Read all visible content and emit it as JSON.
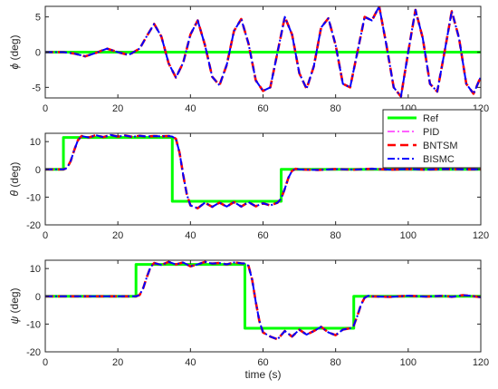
{
  "chart_data": [
    {
      "type": "line",
      "ylabel_symbol": "ϕ",
      "ylabel_unit": " (deg)",
      "xlim": [
        0,
        120
      ],
      "ylim": [
        -6.5,
        6.5
      ],
      "xticks": [
        0,
        20,
        40,
        60,
        80,
        100,
        120
      ],
      "yticks": [
        -5,
        0,
        5
      ],
      "xlabel": "",
      "series": [
        {
          "name": "Ref",
          "x": [
            0,
            120
          ],
          "y": [
            0,
            0
          ]
        },
        {
          "name": "PID",
          "x": [
            0,
            5,
            8,
            11,
            14,
            17,
            20,
            23,
            26,
            28,
            30,
            32,
            34,
            36,
            38,
            40,
            42,
            44,
            46,
            48,
            50,
            52,
            54,
            56,
            58,
            60,
            62,
            64,
            66,
            68,
            70,
            72,
            74,
            76,
            78,
            80,
            82,
            84,
            86,
            88,
            90,
            92,
            94,
            96,
            98,
            100,
            102,
            104,
            106,
            108,
            110,
            112,
            114,
            116,
            118,
            120
          ],
          "y": [
            0,
            0,
            -0.2,
            -0.6,
            -0.1,
            0.5,
            0,
            -0.4,
            0.5,
            2.3,
            4.0,
            2.2,
            -1.6,
            -3.6,
            -1.5,
            2.5,
            4.5,
            1.0,
            -3.5,
            -4.7,
            -1.8,
            3.0,
            4.7,
            1.2,
            -4.0,
            -5.5,
            -5.0,
            0.0,
            5.0,
            2.5,
            -3.0,
            -5.2,
            -2.0,
            3.5,
            4.8,
            1.0,
            -4.5,
            -5.0,
            0.0,
            5.0,
            4.5,
            6.5,
            1.0,
            -5.0,
            -6.3,
            0.0,
            6.0,
            2.0,
            -4.5,
            -5.6,
            0.0,
            5.8,
            2.0,
            -4.5,
            -5.9,
            -3.5
          ]
        },
        {
          "name": "BNTSM",
          "x": [
            0,
            5,
            8,
            11,
            14,
            17,
            20,
            23,
            26,
            28,
            30,
            32,
            34,
            36,
            38,
            40,
            42,
            44,
            46,
            48,
            50,
            52,
            54,
            56,
            58,
            60,
            62,
            64,
            66,
            68,
            70,
            72,
            74,
            76,
            78,
            80,
            82,
            84,
            86,
            88,
            90,
            92,
            94,
            96,
            98,
            100,
            102,
            104,
            106,
            108,
            110,
            112,
            114,
            116,
            118,
            120
          ],
          "y": [
            0,
            0,
            -0.2,
            -0.6,
            -0.1,
            0.5,
            0,
            -0.4,
            0.5,
            2.3,
            4.0,
            2.2,
            -1.6,
            -3.6,
            -1.5,
            2.5,
            4.5,
            1.0,
            -3.5,
            -4.7,
            -1.8,
            3.0,
            4.7,
            1.2,
            -4.0,
            -5.5,
            -5.0,
            0.0,
            5.0,
            2.5,
            -3.0,
            -5.2,
            -2.0,
            3.5,
            4.8,
            1.0,
            -4.5,
            -5.0,
            0.0,
            5.0,
            4.5,
            6.5,
            1.0,
            -5.0,
            -6.3,
            0.0,
            6.0,
            2.0,
            -4.5,
            -5.6,
            0.0,
            5.8,
            2.0,
            -4.5,
            -5.9,
            -3.5
          ]
        },
        {
          "name": "BISMC",
          "x": [
            0,
            5,
            8,
            11,
            14,
            17,
            20,
            23,
            26,
            28,
            30,
            32,
            34,
            36,
            38,
            40,
            42,
            44,
            46,
            48,
            50,
            52,
            54,
            56,
            58,
            60,
            62,
            64,
            66,
            68,
            70,
            72,
            74,
            76,
            78,
            80,
            82,
            84,
            86,
            88,
            90,
            92,
            94,
            96,
            98,
            100,
            102,
            104,
            106,
            108,
            110,
            112,
            114,
            116,
            118,
            120
          ],
          "y": [
            0,
            0,
            -0.2,
            -0.6,
            -0.1,
            0.5,
            0,
            -0.4,
            0.5,
            2.3,
            4.0,
            2.2,
            -1.6,
            -3.6,
            -1.5,
            2.5,
            4.5,
            1.0,
            -3.5,
            -4.7,
            -1.8,
            3.0,
            4.7,
            1.2,
            -4.0,
            -5.5,
            -5.0,
            0.0,
            5.0,
            2.5,
            -3.0,
            -5.2,
            -2.0,
            3.5,
            4.8,
            1.0,
            -4.5,
            -5.0,
            0.0,
            5.0,
            4.5,
            6.5,
            1.0,
            -5.0,
            -6.3,
            0.0,
            6.0,
            2.0,
            -4.5,
            -5.6,
            0.0,
            5.8,
            2.0,
            -4.5,
            -5.9,
            -3.5
          ]
        }
      ]
    },
    {
      "type": "line",
      "ylabel_symbol": "θ",
      "ylabel_unit": " (deg)",
      "xlim": [
        0,
        120
      ],
      "ylim": [
        -20,
        13
      ],
      "xticks": [
        0,
        20,
        40,
        60,
        80,
        100,
        120
      ],
      "yticks": [
        -20,
        -10,
        0,
        10
      ],
      "xlabel": "",
      "legend": {
        "location": "top-right",
        "entries": [
          "Ref",
          "PID",
          "BNTSM",
          "BISMC"
        ]
      },
      "series": [
        {
          "name": "Ref",
          "x": [
            0,
            5,
            5,
            35,
            35,
            65,
            65,
            120
          ],
          "y": [
            0,
            0,
            11.5,
            11.5,
            -11.5,
            -11.5,
            0,
            0
          ]
        },
        {
          "name": "PID",
          "x": [
            0,
            5,
            6,
            7,
            8,
            9,
            10,
            12,
            14,
            16,
            18,
            20,
            22,
            24,
            26,
            28,
            30,
            32,
            34,
            35,
            36,
            37,
            38,
            39,
            40,
            42,
            44,
            46,
            48,
            50,
            52,
            54,
            56,
            58,
            60,
            62,
            64,
            65,
            66,
            67,
            68,
            69,
            70,
            75,
            80,
            85,
            90,
            95,
            100,
            105,
            110,
            115,
            120
          ],
          "y": [
            0,
            0,
            0.5,
            3.0,
            7.0,
            10.5,
            12.0,
            11.5,
            12.3,
            11.6,
            12.4,
            11.8,
            12.2,
            11.7,
            12.1,
            11.8,
            12.0,
            11.9,
            12.0,
            11.8,
            11.0,
            6.0,
            -2.0,
            -9.0,
            -13.0,
            -14.0,
            -12.0,
            -13.5,
            -12.0,
            -13.4,
            -11.8,
            -13.4,
            -11.8,
            -13.3,
            -12.2,
            -13.0,
            -12.0,
            -10.5,
            -7.0,
            -3.0,
            -0.5,
            0.2,
            0,
            -0.2,
            0.1,
            -0.1,
            0.2,
            -0.1,
            0.1,
            -0.1,
            0.1,
            0,
            0
          ]
        },
        {
          "name": "BNTSM",
          "x": [
            0,
            5,
            6,
            7,
            8,
            9,
            10,
            12,
            14,
            16,
            18,
            20,
            22,
            24,
            26,
            28,
            30,
            32,
            34,
            35,
            36,
            37,
            38,
            39,
            40,
            42,
            44,
            46,
            48,
            50,
            52,
            54,
            56,
            58,
            60,
            62,
            64,
            65,
            66,
            67,
            68,
            69,
            70,
            75,
            80,
            85,
            90,
            95,
            100,
            105,
            110,
            115,
            120
          ],
          "y": [
            0,
            0,
            0.5,
            3.0,
            7.0,
            10.5,
            12.0,
            11.5,
            12.3,
            11.6,
            12.4,
            11.8,
            12.2,
            11.7,
            12.1,
            11.8,
            12.0,
            11.9,
            12.0,
            11.8,
            11.0,
            6.0,
            -2.0,
            -9.0,
            -13.0,
            -14.0,
            -12.0,
            -13.5,
            -12.0,
            -13.4,
            -11.8,
            -13.4,
            -11.8,
            -13.3,
            -12.2,
            -13.0,
            -12.0,
            -10.5,
            -7.0,
            -3.0,
            -0.5,
            0.2,
            0,
            -0.2,
            0.1,
            -0.1,
            0.2,
            -0.1,
            0.1,
            -0.1,
            0.1,
            0,
            0
          ]
        },
        {
          "name": "BISMC",
          "x": [
            0,
            5,
            6,
            7,
            8,
            9,
            10,
            12,
            14,
            16,
            18,
            20,
            22,
            24,
            26,
            28,
            30,
            32,
            34,
            35,
            36,
            37,
            38,
            39,
            40,
            42,
            44,
            46,
            48,
            50,
            52,
            54,
            56,
            58,
            60,
            62,
            64,
            65,
            66,
            67,
            68,
            69,
            70,
            75,
            80,
            85,
            90,
            95,
            100,
            105,
            110,
            115,
            120
          ],
          "y": [
            0,
            0,
            0.5,
            3.0,
            7.0,
            10.5,
            12.0,
            11.5,
            12.3,
            11.6,
            12.4,
            11.8,
            12.2,
            11.7,
            12.1,
            11.8,
            12.0,
            11.9,
            12.0,
            11.8,
            11.0,
            6.0,
            -2.0,
            -9.0,
            -13.0,
            -14.0,
            -12.0,
            -13.5,
            -12.0,
            -13.4,
            -11.8,
            -13.4,
            -11.8,
            -13.3,
            -12.2,
            -13.0,
            -12.0,
            -10.5,
            -7.0,
            -3.0,
            -0.5,
            0.2,
            0,
            -0.2,
            0.1,
            -0.1,
            0.2,
            -0.1,
            0.1,
            -0.1,
            0.1,
            0,
            0
          ]
        }
      ]
    },
    {
      "type": "line",
      "ylabel_symbol": "ψ",
      "ylabel_unit": " (deg)",
      "xlim": [
        0,
        120
      ],
      "ylim": [
        -20,
        13
      ],
      "xticks": [
        0,
        20,
        40,
        60,
        80,
        100,
        120
      ],
      "yticks": [
        -20,
        -10,
        0,
        10
      ],
      "xlabel": "time (s)",
      "series": [
        {
          "name": "Ref",
          "x": [
            0,
            25,
            25,
            55,
            55,
            85,
            85,
            120
          ],
          "y": [
            0,
            0,
            11.5,
            11.5,
            -11.5,
            -11.5,
            0,
            0
          ]
        },
        {
          "name": "PID",
          "x": [
            0,
            25,
            26,
            27,
            28,
            29,
            30,
            32,
            34,
            36,
            38,
            40,
            42,
            44,
            46,
            48,
            50,
            52,
            54,
            55,
            56,
            57,
            58,
            59,
            60,
            62,
            64,
            66,
            68,
            70,
            72,
            74,
            76,
            78,
            80,
            82,
            84,
            85,
            86,
            87,
            88,
            89,
            90,
            95,
            100,
            105,
            110,
            112,
            115,
            117,
            120
          ],
          "y": [
            0,
            0,
            0.5,
            3.0,
            7.0,
            10.5,
            12.0,
            11.3,
            12.4,
            11.5,
            12.2,
            10.8,
            11.5,
            12.4,
            11.8,
            12.0,
            11.5,
            12.2,
            11.9,
            11.8,
            11.0,
            6.0,
            -2.0,
            -9.0,
            -13.0,
            -14.5,
            -15.5,
            -12.5,
            -14.5,
            -12.0,
            -13.8,
            -12.5,
            -11.0,
            -13.0,
            -14.0,
            -12.0,
            -11.5,
            -10.5,
            -7.0,
            -3.0,
            -0.5,
            0.2,
            0,
            -0.2,
            0.2,
            -0.1,
            0.2,
            -0.2,
            0.4,
            0.2,
            -0.3
          ]
        },
        {
          "name": "BNTSM",
          "x": [
            0,
            25,
            26,
            27,
            28,
            29,
            30,
            32,
            34,
            36,
            38,
            40,
            42,
            44,
            46,
            48,
            50,
            52,
            54,
            55,
            56,
            57,
            58,
            59,
            60,
            62,
            64,
            66,
            68,
            70,
            72,
            74,
            76,
            78,
            80,
            82,
            84,
            85,
            86,
            87,
            88,
            89,
            90,
            95,
            100,
            105,
            110,
            112,
            115,
            117,
            120
          ],
          "y": [
            0,
            0,
            0.5,
            3.0,
            7.0,
            10.5,
            12.0,
            11.3,
            12.4,
            11.5,
            12.2,
            10.8,
            11.5,
            12.4,
            11.8,
            12.0,
            11.5,
            12.2,
            11.9,
            11.8,
            11.0,
            6.0,
            -2.0,
            -9.0,
            -13.0,
            -14.5,
            -15.5,
            -12.5,
            -14.5,
            -12.0,
            -13.8,
            -12.5,
            -11.0,
            -13.0,
            -14.0,
            -12.0,
            -11.5,
            -10.5,
            -7.0,
            -3.0,
            -0.5,
            0.2,
            0,
            -0.2,
            0.2,
            -0.1,
            0.2,
            -0.2,
            0.4,
            0.2,
            -0.3
          ]
        },
        {
          "name": "BISMC",
          "x": [
            0,
            25,
            26,
            27,
            28,
            29,
            30,
            32,
            34,
            36,
            38,
            40,
            42,
            44,
            46,
            48,
            50,
            52,
            54,
            55,
            56,
            57,
            58,
            59,
            60,
            62,
            64,
            66,
            68,
            70,
            72,
            74,
            76,
            78,
            80,
            82,
            84,
            85,
            86,
            87,
            88,
            89,
            90,
            95,
            100,
            105,
            110,
            112,
            115,
            117,
            120
          ],
          "y": [
            0,
            0,
            0.5,
            3.0,
            7.0,
            10.5,
            12.0,
            11.3,
            12.4,
            11.5,
            12.2,
            10.8,
            11.5,
            12.4,
            11.8,
            12.0,
            11.5,
            12.2,
            11.9,
            11.8,
            11.0,
            6.0,
            -2.0,
            -9.0,
            -13.0,
            -14.5,
            -15.5,
            -12.5,
            -14.5,
            -12.0,
            -13.8,
            -12.5,
            -11.0,
            -13.0,
            -14.0,
            -12.0,
            -11.5,
            -10.5,
            -7.0,
            -3.0,
            -0.5,
            0.2,
            0,
            -0.2,
            0.2,
            -0.1,
            0.2,
            -0.2,
            0.4,
            0.2,
            -0.3
          ]
        }
      ]
    }
  ],
  "series_styles": {
    "Ref": {
      "color": "#00ff00",
      "dash": "solid"
    },
    "PID": {
      "color": "#ff00ff",
      "dash": "dash-dot"
    },
    "BNTSM": {
      "color": "#ff0000",
      "dash": "dashed"
    },
    "BISMC": {
      "color": "#0000ff",
      "dash": "dash-dot"
    }
  }
}
